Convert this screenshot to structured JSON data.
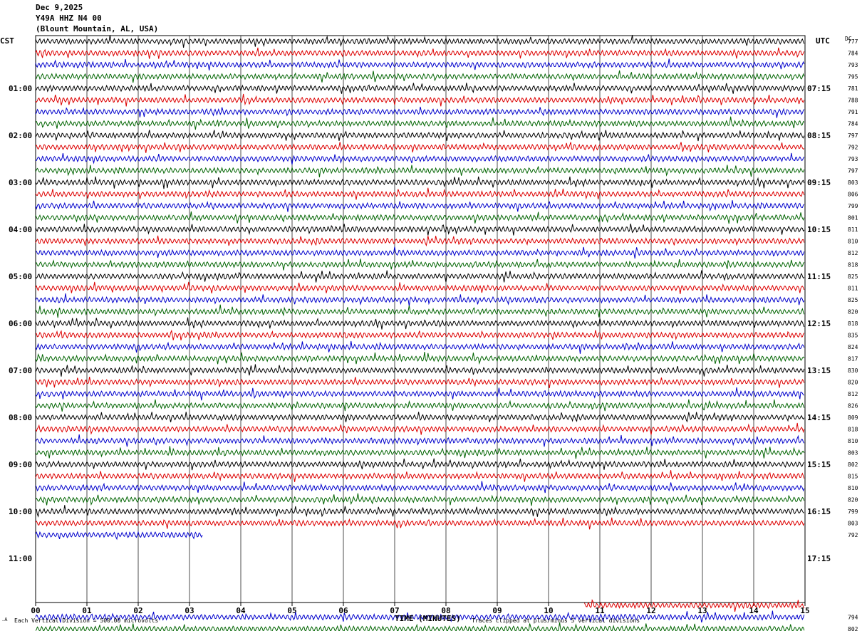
{
  "header": {
    "date": "Dec 9,2025",
    "station": "Y49A HHZ N4 00",
    "location": "(Blount Mountain, AL, USA)"
  },
  "left_tz": "CST",
  "right_tz": "UTC",
  "dc_label": "DC",
  "footer": {
    "scale": "Each Vertical Division =  500.00 microvolts",
    "xaxis_title": "TIME (MINUTES)",
    "clip_note": "Traces clipped at plus/minus 5 vertical divisions"
  },
  "colors": {
    "black": "#000000",
    "red": "#dd0000",
    "blue": "#0000cc",
    "green": "#006400",
    "grid": "#000000"
  },
  "chart_data": {
    "type": "line",
    "title": "Y49A HHZ N4 00",
    "xlabel": "TIME (MINUTES)",
    "x_ticks": [
      "00",
      "01",
      "02",
      "03",
      "04",
      "05",
      "06",
      "07",
      "08",
      "09",
      "10",
      "11",
      "12",
      "13",
      "14",
      "15"
    ],
    "xlim": [
      0,
      15
    ],
    "left_time_labels": [
      {
        "row": 4,
        "text": "01:00"
      },
      {
        "row": 8,
        "text": "02:00"
      },
      {
        "row": 12,
        "text": "03:00"
      },
      {
        "row": 16,
        "text": "04:00"
      },
      {
        "row": 20,
        "text": "05:00"
      },
      {
        "row": 24,
        "text": "06:00"
      },
      {
        "row": 28,
        "text": "07:00"
      },
      {
        "row": 32,
        "text": "08:00"
      },
      {
        "row": 36,
        "text": "09:00"
      },
      {
        "row": 40,
        "text": "10:00"
      },
      {
        "row": 44,
        "text": "11:00"
      }
    ],
    "right_time_labels": [
      {
        "row": 4,
        "text": "07:15"
      },
      {
        "row": 8,
        "text": "08:15"
      },
      {
        "row": 12,
        "text": "09:15"
      },
      {
        "row": 16,
        "text": "10:15"
      },
      {
        "row": 20,
        "text": "11:15"
      },
      {
        "row": 24,
        "text": "12:15"
      },
      {
        "row": 28,
        "text": "13:15"
      },
      {
        "row": 32,
        "text": "14:15"
      },
      {
        "row": 36,
        "text": "15:15"
      },
      {
        "row": 40,
        "text": "16:15"
      },
      {
        "row": 44,
        "text": "17:15"
      }
    ],
    "rows": [
      {
        "color": "black",
        "dc": "777",
        "start": 0,
        "end": 15
      },
      {
        "color": "red",
        "dc": "784",
        "start": 0,
        "end": 15
      },
      {
        "color": "blue",
        "dc": "793",
        "start": 0,
        "end": 15
      },
      {
        "color": "green",
        "dc": "795",
        "start": 0,
        "end": 15
      },
      {
        "color": "black",
        "dc": "781",
        "start": 0,
        "end": 15
      },
      {
        "color": "red",
        "dc": "788",
        "start": 0,
        "end": 15
      },
      {
        "color": "blue",
        "dc": "791",
        "start": 0,
        "end": 15
      },
      {
        "color": "green",
        "dc": "784",
        "start": 0,
        "end": 15
      },
      {
        "color": "black",
        "dc": "797",
        "start": 0,
        "end": 15
      },
      {
        "color": "red",
        "dc": "792",
        "start": 0,
        "end": 15
      },
      {
        "color": "blue",
        "dc": "793",
        "start": 0,
        "end": 15
      },
      {
        "color": "green",
        "dc": "797",
        "start": 0,
        "end": 15
      },
      {
        "color": "black",
        "dc": "803",
        "start": 0,
        "end": 15
      },
      {
        "color": "red",
        "dc": "806",
        "start": 0,
        "end": 15
      },
      {
        "color": "blue",
        "dc": "799",
        "start": 0,
        "end": 15
      },
      {
        "color": "green",
        "dc": "801",
        "start": 0,
        "end": 15
      },
      {
        "color": "black",
        "dc": "811",
        "start": 0,
        "end": 15
      },
      {
        "color": "red",
        "dc": "810",
        "start": 0,
        "end": 15
      },
      {
        "color": "blue",
        "dc": "812",
        "start": 0,
        "end": 15
      },
      {
        "color": "green",
        "dc": "818",
        "start": 0,
        "end": 15
      },
      {
        "color": "black",
        "dc": "825",
        "start": 0,
        "end": 15
      },
      {
        "color": "red",
        "dc": "811",
        "start": 0,
        "end": 15
      },
      {
        "color": "blue",
        "dc": "825",
        "start": 0,
        "end": 15
      },
      {
        "color": "green",
        "dc": "820",
        "start": 0,
        "end": 15
      },
      {
        "color": "black",
        "dc": "818",
        "start": 0,
        "end": 15
      },
      {
        "color": "red",
        "dc": "835",
        "start": 0,
        "end": 15
      },
      {
        "color": "blue",
        "dc": "824",
        "start": 0,
        "end": 15
      },
      {
        "color": "green",
        "dc": "817",
        "start": 0,
        "end": 15
      },
      {
        "color": "black",
        "dc": "830",
        "start": 0,
        "end": 15
      },
      {
        "color": "red",
        "dc": "820",
        "start": 0,
        "end": 15
      },
      {
        "color": "blue",
        "dc": "812",
        "start": 0,
        "end": 15
      },
      {
        "color": "green",
        "dc": "826",
        "start": 0,
        "end": 15
      },
      {
        "color": "black",
        "dc": "809",
        "start": 0,
        "end": 15
      },
      {
        "color": "red",
        "dc": "818",
        "start": 0,
        "end": 15
      },
      {
        "color": "blue",
        "dc": "810",
        "start": 0,
        "end": 15
      },
      {
        "color": "green",
        "dc": "803",
        "start": 0,
        "end": 15
      },
      {
        "color": "black",
        "dc": "802",
        "start": 0,
        "end": 15
      },
      {
        "color": "red",
        "dc": "815",
        "start": 0,
        "end": 15
      },
      {
        "color": "blue",
        "dc": "810",
        "start": 0,
        "end": 15
      },
      {
        "color": "green",
        "dc": "820",
        "start": 0,
        "end": 15
      },
      {
        "color": "black",
        "dc": "799",
        "start": 0,
        "end": 15
      },
      {
        "color": "red",
        "dc": "803",
        "start": 0,
        "end": 15
      },
      {
        "color": "blue",
        "dc": "792",
        "start": 0,
        "end": 3.25
      },
      {
        "color": "green",
        "dc": "",
        "start": 0,
        "end": 0
      },
      {
        "color": "black",
        "dc": "",
        "start": 0,
        "end": 0
      },
      {
        "color": "red",
        "dc": "",
        "start": 0,
        "end": 0
      },
      {
        "color": "blue",
        "dc": "",
        "start": 0,
        "end": 0
      },
      {
        "color": "green",
        "dc": "",
        "start": 0,
        "end": 0
      },
      {
        "color": "red",
        "dc": "",
        "start": 10.7,
        "end": 15
      },
      {
        "color": "blue",
        "dc": "794",
        "start": 0,
        "end": 15
      },
      {
        "color": "green",
        "dc": "802",
        "start": 0,
        "end": 15
      }
    ]
  }
}
